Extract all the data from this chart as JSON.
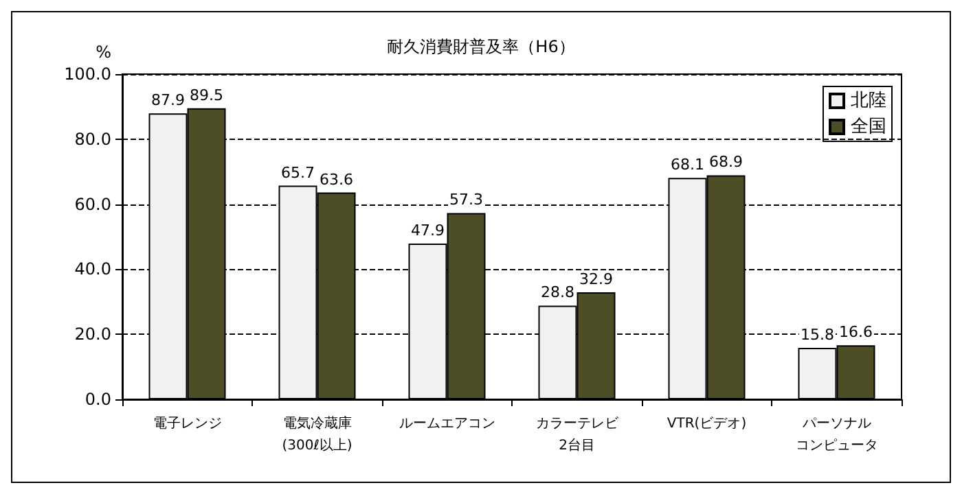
{
  "chart_data": {
    "type": "bar",
    "title": "耐久消費財普及率（H6）",
    "ylabel": "%",
    "categories": [
      "電子レンジ",
      "電気冷蔵庫\n(300ℓ以上)",
      "ルームエアコン",
      "カラーテレビ\n2台目",
      "VTR(ビデオ)",
      "パーソナルコンピュータ"
    ],
    "series": [
      {
        "name": "北陸",
        "color": "#f2f2f2",
        "values": [
          87.9,
          65.7,
          47.9,
          28.8,
          68.1,
          15.8
        ]
      },
      {
        "name": "全国",
        "color": "#4d4d26",
        "values": [
          89.5,
          63.6,
          57.3,
          32.9,
          68.9,
          16.6
        ]
      }
    ],
    "ylim": [
      0,
      100
    ],
    "yticks": [
      {
        "value": 0,
        "label": "0.0"
      },
      {
        "value": 20,
        "label": "20.0"
      },
      {
        "value": 40,
        "label": "40.0"
      },
      {
        "value": 60,
        "label": "60.0"
      },
      {
        "value": 80,
        "label": "80.0"
      },
      {
        "value": 100,
        "label": "100.0"
      }
    ],
    "grid": "y",
    "legend": "top right",
    "data_labels": true
  }
}
